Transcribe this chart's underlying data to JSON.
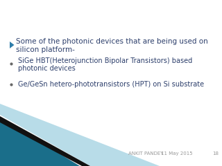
{
  "bg_color": "#ffffff",
  "main_bullet_text_line1": "Some of the photonic devices that are being used on",
  "main_bullet_text_line2": "silicon platform-",
  "sub_bullet1_line1": "SiGe HBT(Heterojunction Bipolar Transistors) based",
  "sub_bullet1_line2": "photonic devices",
  "sub_bullet2": "Ge/GeSn hetero-phototransistors (HPT) on Si substrate",
  "footer_author": "ANKIT PANDEY",
  "footer_date": "11 May 2015",
  "footer_page": "18",
  "main_text_color": "#2c3e6b",
  "sub_text_color": "#2c3e6b",
  "footer_text_color": "#999999",
  "arrow_color": "#2e7daa",
  "triangle_dark": "#1a6e8a",
  "triangle_black": "#111111",
  "triangle_light": "#b8dce8",
  "main_fontsize": 7.5,
  "sub_fontsize": 7.0,
  "footer_fontsize": 5.0
}
